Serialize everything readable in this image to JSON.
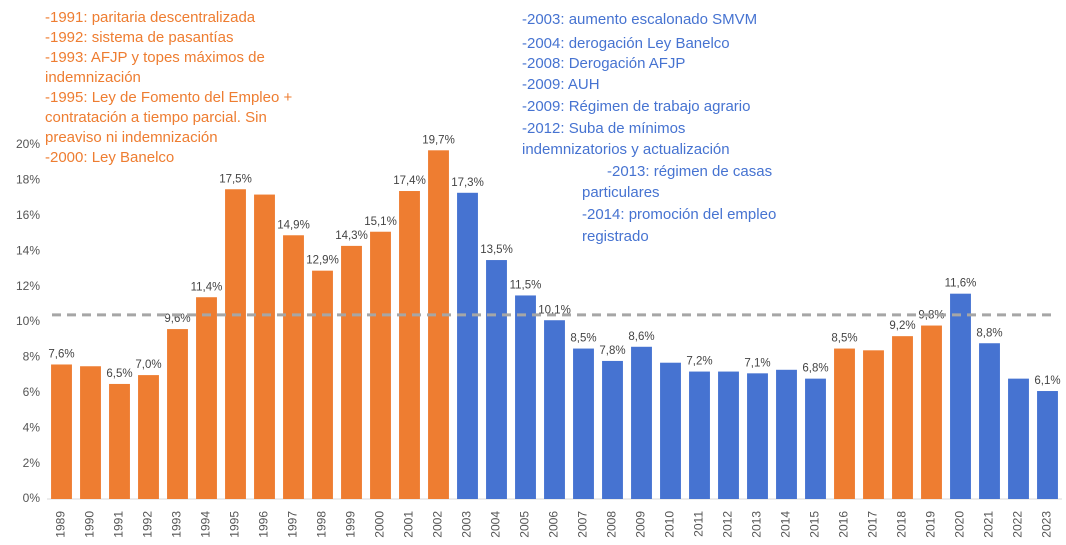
{
  "chart_data": {
    "type": "bar",
    "categories": [
      "1989",
      "1990",
      "1991",
      "1992",
      "1993",
      "1994",
      "1995",
      "1996",
      "1997",
      "1998",
      "1999",
      "2000",
      "2001",
      "2002",
      "2003",
      "2004",
      "2005",
      "2006",
      "2007",
      "2008",
      "2009",
      "2010",
      "2011",
      "2012",
      "2013",
      "2014",
      "2015",
      "2016",
      "2017",
      "2018",
      "2019",
      "2020",
      "2021",
      "2022",
      "2023"
    ],
    "values": [
      7.6,
      7.5,
      6.5,
      7.0,
      9.6,
      11.4,
      17.5,
      17.2,
      14.9,
      12.9,
      14.3,
      15.1,
      17.4,
      19.7,
      17.3,
      13.5,
      11.5,
      10.1,
      8.5,
      7.8,
      8.6,
      7.7,
      7.2,
      7.2,
      7.1,
      7.3,
      6.8,
      8.5,
      8.4,
      9.2,
      9.8,
      11.6,
      8.8,
      6.8,
      6.1
    ],
    "value_labels": [
      "7,6%",
      null,
      "6,5%",
      "7,0%",
      "9,6%",
      "11,4%",
      "17,5%",
      null,
      "14,9%",
      "12,9%",
      "14,3%",
      "15,1%",
      "17,4%",
      "19,7%",
      "17,3%",
      "13,5%",
      "11,5%",
      "10,1%",
      "8,5%",
      "7,8%",
      "8,6%",
      null,
      "7,2%",
      null,
      "7,1%",
      null,
      "6,8%",
      "8,5%",
      null,
      "9,2%",
      "9,8%",
      "11,6%",
      "8,8%",
      null,
      "6,1%"
    ],
    "colors": [
      "#ee7d31",
      "#ee7d31",
      "#ee7d31",
      "#ee7d31",
      "#ee7d31",
      "#ee7d31",
      "#ee7d31",
      "#ee7d31",
      "#ee7d31",
      "#ee7d31",
      "#ee7d31",
      "#ee7d31",
      "#ee7d31",
      "#ee7d31",
      "#4673d1",
      "#4673d1",
      "#4673d1",
      "#4673d1",
      "#4673d1",
      "#4673d1",
      "#4673d1",
      "#4673d1",
      "#4673d1",
      "#4673d1",
      "#4673d1",
      "#4673d1",
      "#4673d1",
      "#ee7d31",
      "#ee7d31",
      "#ee7d31",
      "#ee7d31",
      "#4673d1",
      "#4673d1",
      "#4673d1",
      "#4673d1"
    ],
    "ylim": [
      0,
      20
    ],
    "yticks": [
      {
        "value": 0,
        "label": "0%"
      },
      {
        "value": 2,
        "label": "2%"
      },
      {
        "value": 4,
        "label": "4%"
      },
      {
        "value": 6,
        "label": "6%"
      },
      {
        "value": 8,
        "label": "8%"
      },
      {
        "value": 10,
        "label": "10%"
      },
      {
        "value": 12,
        "label": "12%"
      },
      {
        "value": 14,
        "label": "14%"
      },
      {
        "value": 16,
        "label": "16%"
      },
      {
        "value": 18,
        "label": "18%"
      },
      {
        "value": 20,
        "label": "20%"
      }
    ],
    "reference_line": 10.4,
    "reference_color": "#a6a6a6",
    "annotations": [
      {
        "color": "#ee7d31",
        "lines": [
          "-1991: paritaria descentralizada",
          "-1992: sistema de pasantías",
          "-1993: AFJP y topes máximos de",
          "indemnización",
          "-1995: Ley de Fomento del Empleo +",
          "contratación a tiempo parcial. Sin",
          "preaviso ni indemnización",
          "-2000: Ley Banelco"
        ]
      },
      {
        "color": "#4673d1",
        "lines": [
          "-2003: aumento escalonado SMVM",
          "-2004: derogación Ley Banelco",
          "-2008: Derogación AFJP",
          "-2009: AUH",
          "-2009: Régimen de trabajo agrario",
          "-2012: Suba de mínimos",
          "indemnizatorios y actualización",
          "-2013: régimen de casas",
          "particulares",
          "-2014: promoción del empleo",
          "registrado"
        ]
      }
    ]
  }
}
